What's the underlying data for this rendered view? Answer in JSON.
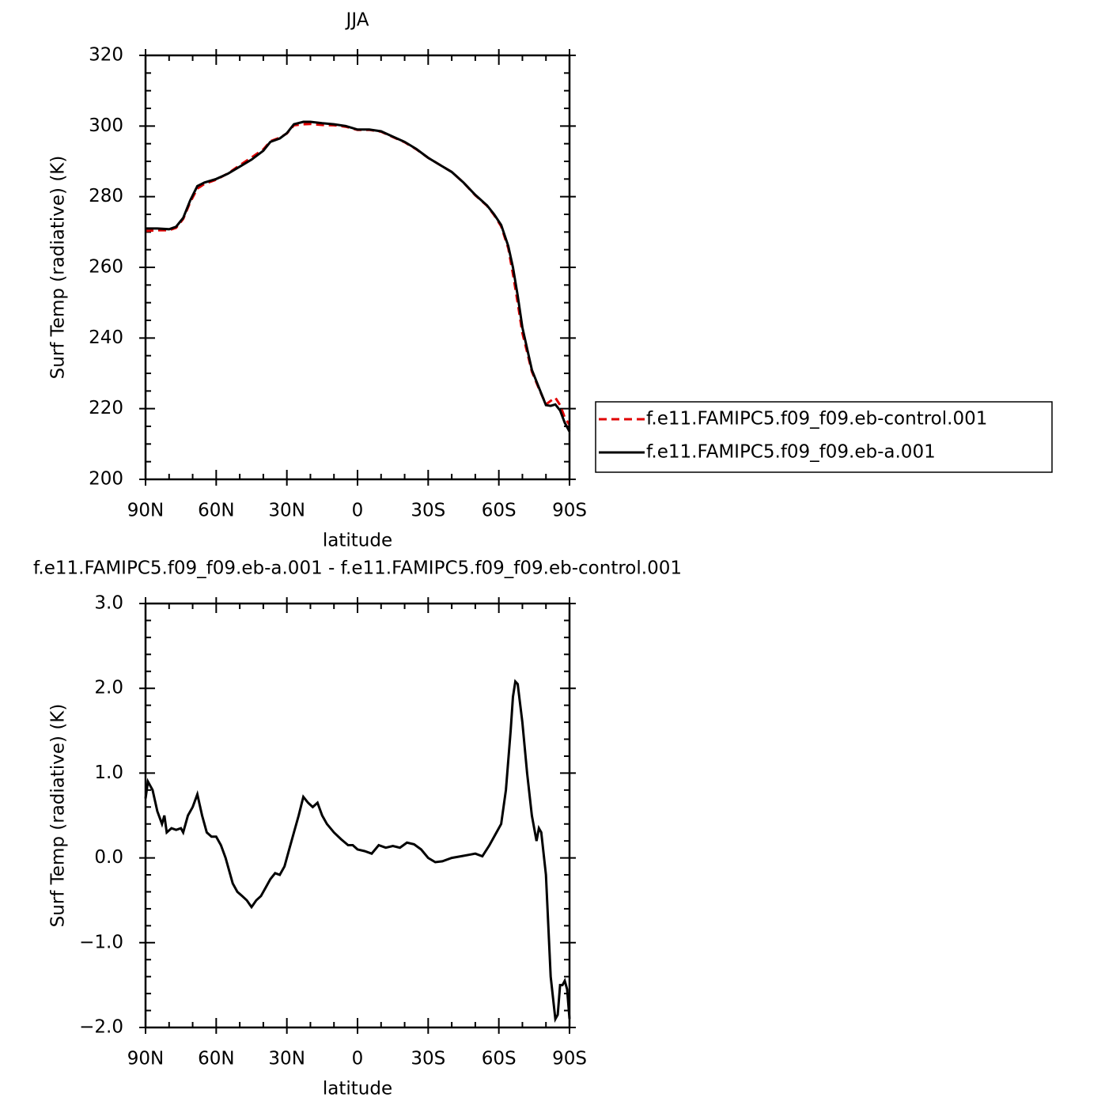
{
  "chart_data": [
    {
      "type": "line",
      "title": "JJA",
      "x_label": "latitude",
      "y_label": "Surf Temp (radiative) (K)",
      "x": [
        90,
        85,
        80,
        77,
        74,
        71,
        68,
        65,
        60,
        55,
        50,
        45,
        40,
        37,
        33,
        30,
        27,
        23,
        20,
        15,
        10,
        5,
        0,
        -5,
        -10,
        -15,
        -20,
        -25,
        -30,
        -35,
        -40,
        -45,
        -50,
        -55,
        -58,
        -61,
        -64,
        -66,
        -68,
        -70,
        -72,
        -74,
        -77,
        -80,
        -82,
        -84,
        -86,
        -88,
        -90
      ],
      "series": [
        {
          "name": "f.e11.FAMIPC5.f09_f09.eb-control.001",
          "color": "#e00000",
          "line_style": "dashed",
          "values": [
            270.3,
            270.5,
            270.5,
            271.2,
            273.7,
            278.5,
            282.3,
            283.6,
            284.8,
            286.6,
            288.9,
            291.1,
            293.4,
            295.7,
            296.7,
            297.9,
            300.2,
            300.5,
            300.6,
            300.3,
            300.2,
            299.8,
            298.9,
            298.9,
            298.4,
            296.9,
            295.4,
            293.4,
            291,
            289,
            287,
            284,
            280.4,
            277.4,
            274.8,
            271.6,
            265.4,
            258.1,
            249.9,
            241.4,
            236,
            230.5,
            225.7,
            221.2,
            222.2,
            223.1,
            221,
            217.5,
            215.4
          ]
        },
        {
          "name": "f.e11.FAMIPC5.f09_f09.eb-a.001",
          "color": "#000000",
          "line_style": "solid",
          "values": [
            271,
            271,
            270.8,
            271.5,
            274,
            279,
            283,
            284,
            285,
            286.5,
            288.5,
            290.5,
            293,
            295.5,
            296.5,
            298,
            300.5,
            301.2,
            301.2,
            300.8,
            300.5,
            300,
            299,
            299,
            298.5,
            297,
            295.5,
            293.5,
            291,
            289,
            287,
            284,
            280.5,
            277.5,
            275,
            272,
            266,
            260,
            252,
            243,
            237,
            231,
            226,
            221,
            220.8,
            221.2,
            219.5,
            216,
            213.5
          ]
        }
      ],
      "xlim": [
        90,
        -90
      ],
      "xticks": [
        {
          "value": 90,
          "label": "90N"
        },
        {
          "value": 60,
          "label": "60N"
        },
        {
          "value": 30,
          "label": "30N"
        },
        0,
        {
          "value": -30,
          "label": "30S"
        },
        {
          "value": -60,
          "label": "60S"
        },
        {
          "value": -90,
          "label": "90S"
        }
      ],
      "ylim": [
        200,
        320
      ],
      "yticks": [
        200,
        220,
        240,
        260,
        280,
        300,
        320
      ],
      "legend": "right"
    },
    {
      "type": "line",
      "title": "f.e11.FAMIPC5.f09_f09.eb-a.001 - f.e11.FAMIPC5.f09_f09.eb-control.001",
      "x_label": "latitude",
      "y_label": "Surf Temp (radiative) (K)",
      "x": [
        90,
        89,
        87,
        85,
        83,
        82,
        81,
        79,
        77,
        75,
        74,
        72,
        70,
        68,
        66,
        64,
        62,
        60,
        58,
        56,
        55,
        53,
        51,
        49,
        47,
        45,
        43,
        41,
        39,
        37,
        35,
        33,
        31,
        29,
        27,
        25,
        23,
        21,
        19,
        17,
        15,
        13,
        10,
        7,
        4,
        2,
        0,
        -3,
        -6,
        -9,
        -12,
        -15,
        -18,
        -21,
        -24,
        -27,
        -30,
        -33,
        -36,
        -40,
        -44,
        -48,
        -50,
        -53,
        -56,
        -59,
        -61,
        -63,
        -65,
        -66,
        -67,
        -68,
        -70,
        -72,
        -74,
        -76,
        -77,
        -78,
        -80,
        -81,
        -82,
        -84,
        -85,
        -86,
        -87,
        -88,
        -89,
        -90
      ],
      "series": [
        {
          "name": "f.e11.FAMIPC5.f09_f09.eb-a.001 - f.e11.FAMIPC5.f09_f09.eb-control.001",
          "color": "#000000",
          "line_style": "solid",
          "values": [
            0.7,
            0.9,
            0.8,
            0.55,
            0.4,
            0.5,
            0.3,
            0.35,
            0.33,
            0.35,
            0.3,
            0.5,
            0.6,
            0.75,
            0.5,
            0.3,
            0.25,
            0.25,
            0.15,
            0.0,
            -0.1,
            -0.3,
            -0.4,
            -0.45,
            -0.5,
            -0.58,
            -0.5,
            -0.45,
            -0.35,
            -0.25,
            -0.18,
            -0.2,
            -0.1,
            0.1,
            0.3,
            0.5,
            0.72,
            0.65,
            0.6,
            0.65,
            0.5,
            0.4,
            0.3,
            0.22,
            0.15,
            0.15,
            0.1,
            0.08,
            0.05,
            0.15,
            0.12,
            0.14,
            0.12,
            0.18,
            0.16,
            0.1,
            0.0,
            -0.05,
            -0.04,
            0.0,
            0.02,
            0.04,
            0.05,
            0.02,
            0.15,
            0.3,
            0.4,
            0.8,
            1.5,
            1.9,
            2.08,
            2.05,
            1.6,
            1.0,
            0.5,
            0.2,
            0.35,
            0.3,
            -0.2,
            -0.8,
            -1.4,
            -1.9,
            -1.85,
            -1.5,
            -1.5,
            -1.45,
            -1.55,
            -1.9
          ]
        }
      ],
      "xlim": [
        90,
        -90
      ],
      "xticks": [
        {
          "value": 90,
          "label": "90N"
        },
        {
          "value": 60,
          "label": "60N"
        },
        {
          "value": 30,
          "label": "30N"
        },
        0,
        {
          "value": -30,
          "label": "30S"
        },
        {
          "value": -60,
          "label": "60S"
        },
        {
          "value": -90,
          "label": "90S"
        }
      ],
      "ylim": [
        -2.0,
        3.0
      ],
      "yticks": [
        {
          "value": -2,
          "label": "−2.0"
        },
        {
          "value": -1,
          "label": "−1.0"
        },
        {
          "value": 0,
          "label": "0.0"
        },
        {
          "value": 1,
          "label": "1.0"
        },
        {
          "value": 2,
          "label": "2.0"
        },
        {
          "value": 3,
          "label": "3.0"
        }
      ]
    }
  ]
}
